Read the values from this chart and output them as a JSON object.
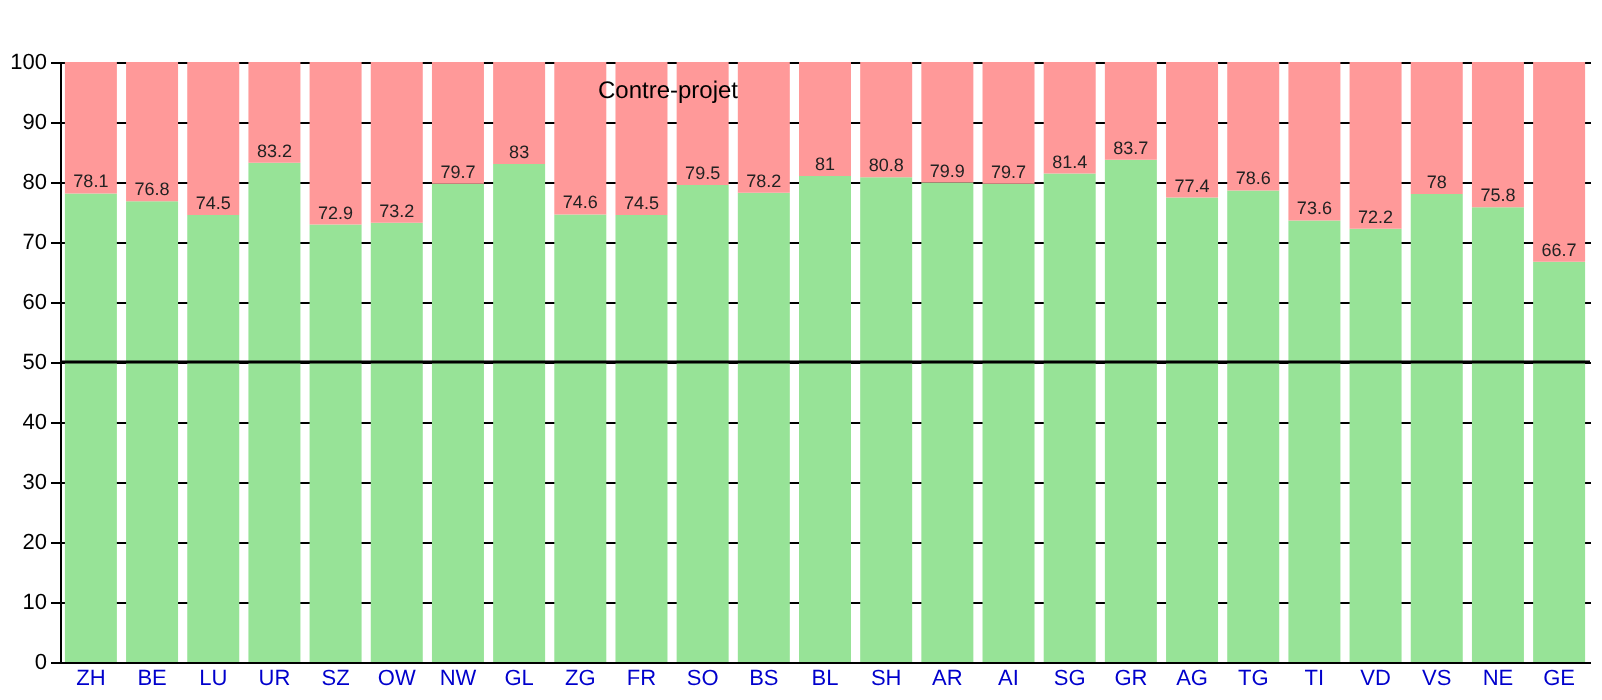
{
  "chart_data": {
    "type": "bar",
    "stacked": true,
    "categories": [
      "ZH",
      "BE",
      "LU",
      "UR",
      "SZ",
      "OW",
      "NW",
      "GL",
      "ZG",
      "FR",
      "SO",
      "BS",
      "BL",
      "SH",
      "AR",
      "AI",
      "SG",
      "GR",
      "AG",
      "TG",
      "TI",
      "VD",
      "VS",
      "NE",
      "GE"
    ],
    "series": [
      {
        "color": "#97e397",
        "values": [
          78.1,
          76.8,
          74.5,
          83.2,
          72.9,
          73.2,
          79.7,
          83,
          74.6,
          74.5,
          79.5,
          78.2,
          81,
          80.8,
          79.9,
          79.7,
          81.4,
          83.7,
          77.4,
          78.6,
          73.6,
          72.2,
          78,
          75.8,
          66.7
        ],
        "value_labels": [
          "78.1",
          "76.8",
          "74.5",
          "83.2",
          "72.9",
          "73.2",
          "79.7",
          "83",
          "74.6",
          "74.5",
          "79.5",
          "78.2",
          "81",
          "80.8",
          "79.9",
          "79.7",
          "81.4",
          "83.7",
          "77.4",
          "78.6",
          "73.6",
          "72.2",
          "78",
          "75.8",
          "66.7"
        ]
      },
      {
        "color": "#ff9999",
        "values": [
          21.9,
          23.2,
          25.5,
          16.8,
          27.1,
          26.8,
          20.3,
          17,
          25.4,
          25.5,
          20.5,
          21.8,
          19,
          19.2,
          20.1,
          20.3,
          18.6,
          16.3,
          22.6,
          21.4,
          26.4,
          27.8,
          22,
          24.2,
          33.3
        ]
      }
    ],
    "ylim": [
      0,
      100
    ],
    "yticks": [
      0,
      10,
      20,
      30,
      40,
      50,
      60,
      70,
      80,
      90,
      100
    ],
    "grid": "y",
    "ref_lines": [
      {
        "axis": "y",
        "value": 50,
        "color": "#000000"
      }
    ],
    "annotations": [
      "Contre-projet"
    ]
  }
}
